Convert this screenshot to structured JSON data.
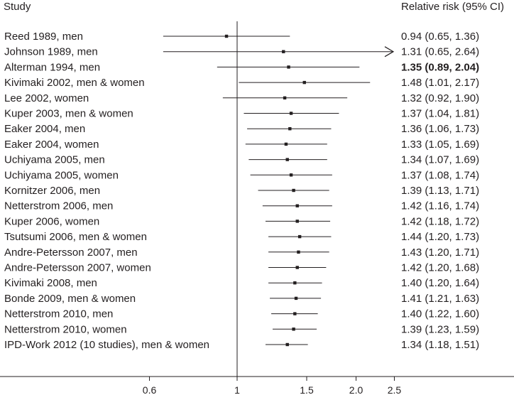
{
  "chart_data": {
    "type": "forest",
    "header_left": "Study",
    "header_right": "Relative risk (95% CI)",
    "x_scale": "log",
    "xlim": [
      0.6,
      2.5
    ],
    "reference_line": 1,
    "x_ticks": [
      {
        "value": 0.6,
        "label": "0.6"
      },
      {
        "value": 1,
        "label": "1"
      },
      {
        "value": 1.5,
        "label": "1.5"
      },
      {
        "value": 2.0,
        "label": "2.0"
      },
      {
        "value": 2.5,
        "label": "2.5"
      }
    ],
    "rows": [
      {
        "study": "Reed 1989, men",
        "rr": 0.94,
        "lo": 0.65,
        "hi": 1.36,
        "text": "0.94 (0.65, 1.36)",
        "bold": false
      },
      {
        "study": "Johnson 1989, men",
        "rr": 1.31,
        "lo": 0.65,
        "hi": 2.64,
        "text": "1.31 (0.65, 2.64)",
        "bold": false,
        "arrow_right": true
      },
      {
        "study": "Alterman 1994, men",
        "rr": 1.35,
        "lo": 0.89,
        "hi": 2.04,
        "text": "1.35 (0.89, 2.04)",
        "bold": true
      },
      {
        "study": "Kivimaki 2002, men & women",
        "rr": 1.48,
        "lo": 1.01,
        "hi": 2.17,
        "text": "1.48 (1.01, 2.17)",
        "bold": false
      },
      {
        "study": "Lee 2002, women",
        "rr": 1.32,
        "lo": 0.92,
        "hi": 1.9,
        "text": "1.32 (0.92, 1.90)",
        "bold": false
      },
      {
        "study": "Kuper 2003, men & women",
        "rr": 1.37,
        "lo": 1.04,
        "hi": 1.81,
        "text": "1.37 (1.04, 1.81)",
        "bold": false
      },
      {
        "study": "Eaker 2004, men",
        "rr": 1.36,
        "lo": 1.06,
        "hi": 1.73,
        "text": "1.36 (1.06, 1.73)",
        "bold": false
      },
      {
        "study": "Eaker 2004, women",
        "rr": 1.33,
        "lo": 1.05,
        "hi": 1.69,
        "text": "1.33 (1.05, 1.69)",
        "bold": false
      },
      {
        "study": "Uchiyama 2005, men",
        "rr": 1.34,
        "lo": 1.07,
        "hi": 1.69,
        "text": "1.34 (1.07, 1.69)",
        "bold": false
      },
      {
        "study": "Uchiyama 2005, women",
        "rr": 1.37,
        "lo": 1.08,
        "hi": 1.74,
        "text": "1.37 (1.08, 1.74)",
        "bold": false
      },
      {
        "study": "Kornitzer 2006, men",
        "rr": 1.39,
        "lo": 1.13,
        "hi": 1.71,
        "text": "1.39 (1.13, 1.71)",
        "bold": false
      },
      {
        "study": "Netterstrom 2006, men",
        "rr": 1.42,
        "lo": 1.16,
        "hi": 1.74,
        "text": "1.42 (1.16, 1.74)",
        "bold": false
      },
      {
        "study": "Kuper 2006, women",
        "rr": 1.42,
        "lo": 1.18,
        "hi": 1.72,
        "text": "1.42 (1.18, 1.72)",
        "bold": false
      },
      {
        "study": "Tsutsumi 2006, men & women",
        "rr": 1.44,
        "lo": 1.2,
        "hi": 1.73,
        "text": "1.44 (1.20, 1.73)",
        "bold": false
      },
      {
        "study": "Andre-Petersson 2007, men",
        "rr": 1.43,
        "lo": 1.2,
        "hi": 1.71,
        "text": "1.43 (1.20, 1.71)",
        "bold": false
      },
      {
        "study": "Andre-Petersson 2007, women",
        "rr": 1.42,
        "lo": 1.2,
        "hi": 1.68,
        "text": "1.42 (1.20, 1.68)",
        "bold": false
      },
      {
        "study": "Kivimaki 2008, men",
        "rr": 1.4,
        "lo": 1.2,
        "hi": 1.64,
        "text": "1.40 (1.20, 1.64)",
        "bold": false
      },
      {
        "study": "Bonde 2009, men & women",
        "rr": 1.41,
        "lo": 1.21,
        "hi": 1.63,
        "text": "1.41 (1.21, 1.63)",
        "bold": false
      },
      {
        "study": "Netterstrom 2010, men",
        "rr": 1.4,
        "lo": 1.22,
        "hi": 1.6,
        "text": "1.40 (1.22, 1.60)",
        "bold": false
      },
      {
        "study": "Netterstrom 2010, women",
        "rr": 1.39,
        "lo": 1.23,
        "hi": 1.59,
        "text": "1.39 (1.23, 1.59)",
        "bold": false
      },
      {
        "study": "IPD-Work 2012 (10 studies), men & women",
        "rr": 1.34,
        "lo": 1.18,
        "hi": 1.51,
        "text": "1.34 (1.18, 1.51)",
        "bold": false
      }
    ],
    "colors": {
      "ink": "#231f20",
      "axis": "#5a5a5a"
    }
  }
}
